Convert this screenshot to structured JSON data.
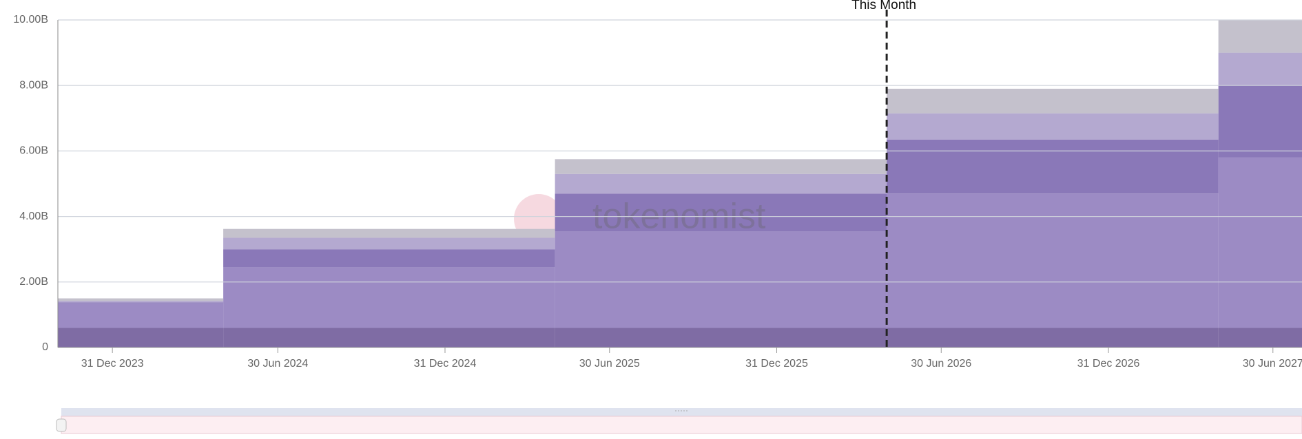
{
  "chart_data": {
    "type": "stacked_step_area",
    "annotation": "This Month",
    "annotation_x": "2026-05-01",
    "watermark": "tokenomist",
    "x": [
      "2023-11-01",
      "2024-05-01",
      "2025-05-01",
      "2026-05-01",
      "2027-05-01"
    ],
    "xlim": [
      "2023-11-01",
      "2027-08-01"
    ],
    "xticks": [
      {
        "value": "2023-12-31",
        "label": "31 Dec 2023"
      },
      {
        "value": "2024-06-30",
        "label": "30 Jun 2024"
      },
      {
        "value": "2024-12-31",
        "label": "31 Dec 2024"
      },
      {
        "value": "2025-06-30",
        "label": "30 Jun 2025"
      },
      {
        "value": "2025-12-31",
        "label": "31 Dec 2025"
      },
      {
        "value": "2026-06-30",
        "label": "30 Jun 2026"
      },
      {
        "value": "2026-12-31",
        "label": "31 Dec 2026"
      },
      {
        "value": "2027-06-30",
        "label": "30 Jun 2027"
      }
    ],
    "ylim": [
      0,
      10
    ],
    "yticks": [
      0,
      {
        "value": 2,
        "label": "2.00B"
      },
      {
        "value": 4,
        "label": "4.00B"
      },
      {
        "value": 6,
        "label": "6.00B"
      },
      {
        "value": 8,
        "label": "8.00B"
      },
      {
        "value": 10,
        "label": "10.00B"
      }
    ],
    "grid": true,
    "series": [
      {
        "color": "#7f6ca4",
        "values": [
          0.6,
          0.6,
          0.6,
          0.6,
          0.6
        ]
      },
      {
        "color": "#9c8bc4",
        "values": [
          0.75,
          1.85,
          2.95,
          4.1,
          5.2
        ]
      },
      {
        "color": "#8a78b8",
        "values": [
          0.03,
          0.55,
          1.15,
          1.65,
          2.2
        ]
      },
      {
        "color": "#b4a9d0",
        "values": [
          0.04,
          0.35,
          0.6,
          0.8,
          1.0
        ]
      },
      {
        "color": "#c4c1cc",
        "values": [
          0.08,
          0.27,
          0.45,
          0.75,
          1.0
        ]
      }
    ]
  }
}
